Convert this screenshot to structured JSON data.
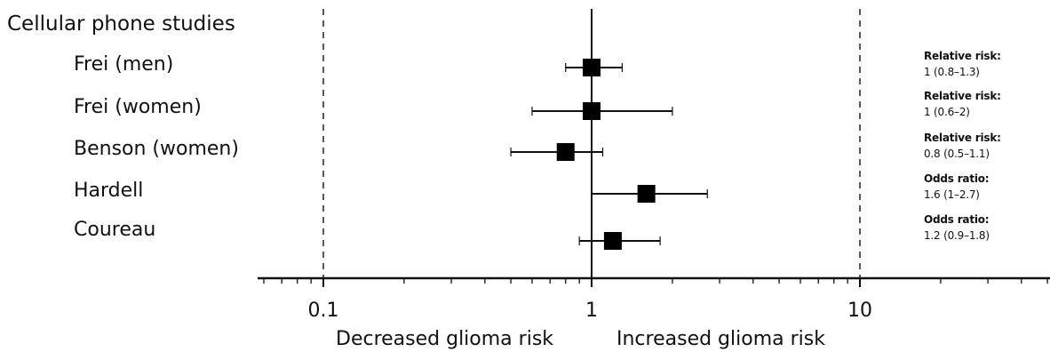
{
  "chart_data": {
    "type": "forest",
    "title": "",
    "section_title": "Cellular phone studies",
    "xscale": "log",
    "xlim": [
      0.06,
      50
    ],
    "xticks": [
      0.1,
      1,
      10
    ],
    "xtick_labels": [
      "0.1",
      "1",
      "10"
    ],
    "reference_line": 1,
    "dashed_lines": [
      0.1,
      10
    ],
    "left_direction_label": "Decreased glioma risk",
    "right_direction_label": "Increased glioma risk",
    "studies": [
      {
        "name": "Frei (men)",
        "estimate": 1.0,
        "ci": [
          0.8,
          1.3
        ],
        "measure": "Relative risk:",
        "value_text": "1 (0.8–1.3)"
      },
      {
        "name": "Frei (women)",
        "estimate": 1.0,
        "ci": [
          0.6,
          2.0
        ],
        "measure": "Relative risk:",
        "value_text": "1 (0.6–2)"
      },
      {
        "name": "Benson (women)",
        "estimate": 0.8,
        "ci": [
          0.5,
          1.1
        ],
        "measure": "Relative risk:",
        "value_text": "0.8 (0.5–1.1)"
      },
      {
        "name": "Hardell",
        "estimate": 1.6,
        "ci": [
          1.0,
          2.7
        ],
        "measure": "Odds ratio:",
        "value_text": "1.6 (1–2.7)"
      },
      {
        "name": "Coureau",
        "estimate": 1.2,
        "ci": [
          0.9,
          1.8
        ],
        "measure": "Odds ratio:",
        "value_text": "1.2 (0.9–1.8)"
      }
    ]
  }
}
